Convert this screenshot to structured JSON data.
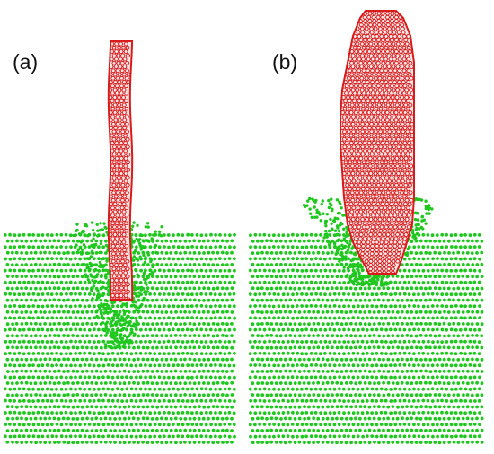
{
  "figure": {
    "panels": [
      {
        "label": "(a)",
        "variant": "thin-nanotube"
      },
      {
        "label": "(b)",
        "variant": "thick-nanotube"
      }
    ]
  },
  "colors": {
    "substrate_atoms": "#1fc71f",
    "nanotube_atoms": "#d81b1b",
    "background": "#ffffff"
  }
}
